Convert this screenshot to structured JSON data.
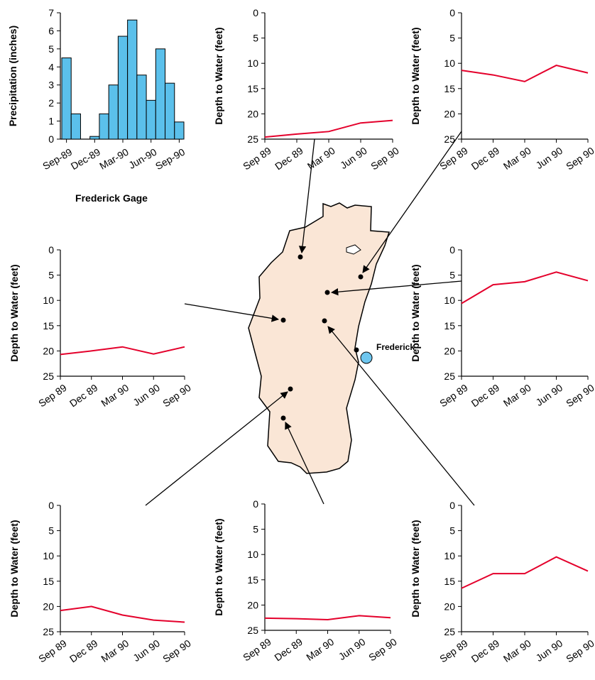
{
  "colors": {
    "precip_bar": "#5bc0eb",
    "well_line": "#e4002b",
    "county_fill": "#fae6d6",
    "city_marker": "#6ec6ef",
    "axis": "#000000"
  },
  "map": {
    "city_label": "Frederick",
    "features": [
      "county-outline",
      "well-points",
      "city-marker",
      "leader-arrows"
    ]
  },
  "chart_data": [
    {
      "id": "precip",
      "type": "bar",
      "title": "",
      "xlabel": "Frederick Gage",
      "ylabel": "Precipitation (inches)",
      "x_tick_labels": [
        "Sep-89",
        "Dec-89",
        "Mar-90",
        "Jun-90",
        "Sep-90"
      ],
      "y_tick_labels": [
        "0",
        "1",
        "2",
        "3",
        "4",
        "5",
        "6",
        "7"
      ],
      "ylim": [
        0,
        7
      ],
      "categories": [
        "Sep-89",
        "Oct-89",
        "Nov-89",
        "Dec-89",
        "Jan-90",
        "Feb-90",
        "Mar-90",
        "Apr-90",
        "May-90",
        "Jun-90",
        "Jul-90",
        "Aug-90",
        "Sep-90"
      ],
      "values": [
        4.5,
        1.4,
        0,
        0.15,
        1.4,
        3.0,
        5.7,
        6.6,
        3.55,
        2.15,
        5.0,
        3.1,
        0.95
      ]
    },
    {
      "id": "well-top-mid",
      "type": "line",
      "ylabel": "Depth to Water (feet)",
      "x_tick_labels": [
        "Sep 89",
        "Dec 89",
        "Mar 90",
        "Jun 90",
        "Sep 90"
      ],
      "y_tick_labels": [
        "0",
        "5",
        "10",
        "15",
        "20",
        "25"
      ],
      "ylim": [
        25,
        0
      ],
      "x": [
        "Sep 89",
        "Dec 89",
        "Mar 90",
        "Jun 90",
        "Sep 90"
      ],
      "values": [
        24.6,
        24.0,
        23.5,
        21.8,
        21.3
      ]
    },
    {
      "id": "well-top-right",
      "type": "line",
      "ylabel": "Depth to Water (feet)",
      "x_tick_labels": [
        "Sep 89",
        "Dec 89",
        "Mar 90",
        "Jun 90",
        "Sep 90"
      ],
      "y_tick_labels": [
        "0",
        "5",
        "10",
        "15",
        "20",
        "25"
      ],
      "ylim": [
        25,
        0
      ],
      "x": [
        "Sep 89",
        "Dec 89",
        "Mar 90",
        "Jun 90",
        "Sep 90"
      ],
      "values": [
        11.4,
        12.3,
        13.6,
        10.4,
        11.9
      ]
    },
    {
      "id": "well-mid-left",
      "type": "line",
      "ylabel": "Depth to Water (feet)",
      "x_tick_labels": [
        "Sep 89",
        "Dec 89",
        "Mar 90",
        "Jun 90",
        "Sep 90"
      ],
      "y_tick_labels": [
        "0",
        "5",
        "10",
        "15",
        "20",
        "25"
      ],
      "ylim": [
        25,
        0
      ],
      "x": [
        "Sep 89",
        "Dec 89",
        "Mar 90",
        "Jun 90",
        "Sep 90"
      ],
      "values": [
        20.7,
        20.0,
        19.2,
        20.6,
        19.2
      ]
    },
    {
      "id": "well-mid-right",
      "type": "line",
      "ylabel": "Depth to Water (feet)",
      "x_tick_labels": [
        "Sep 89",
        "Dec 89",
        "Mar 90",
        "Jun 90",
        "Sep 90"
      ],
      "y_tick_labels": [
        "0",
        "5",
        "10",
        "15",
        "20",
        "25"
      ],
      "ylim": [
        25,
        0
      ],
      "x": [
        "Sep 89",
        "Dec 89",
        "Mar 90",
        "Jun 90",
        "Sep 90"
      ],
      "values": [
        10.6,
        6.9,
        6.3,
        4.4,
        6.1
      ]
    },
    {
      "id": "well-bottom-left",
      "type": "line",
      "ylabel": "Depth to Water (feet)",
      "x_tick_labels": [
        "Sep 89",
        "Dec 89",
        "Mar 90",
        "Jun 90",
        "Sep 90"
      ],
      "y_tick_labels": [
        "0",
        "5",
        "10",
        "15",
        "20",
        "25"
      ],
      "ylim": [
        25,
        0
      ],
      "x": [
        "Sep 89",
        "Dec 89",
        "Mar 90",
        "Jun 90",
        "Sep 90"
      ],
      "values": [
        20.8,
        20.0,
        21.7,
        22.7,
        23.1
      ]
    },
    {
      "id": "well-bottom-mid",
      "type": "line",
      "ylabel": "Depth to Water (feet)",
      "x_tick_labels": [
        "Sep 89",
        "Dec 89",
        "Mar 90",
        "Jun 90",
        "Sep 90"
      ],
      "y_tick_labels": [
        "0",
        "5",
        "10",
        "15",
        "20",
        "25"
      ],
      "ylim": [
        25,
        0
      ],
      "x": [
        "Sep 89",
        "Dec 89",
        "Mar 90",
        "Jun 90",
        "Sep 90"
      ],
      "values": [
        22.6,
        22.7,
        22.9,
        22.1,
        22.5
      ]
    },
    {
      "id": "well-bottom-right",
      "type": "line",
      "ylabel": "Depth to Water (feet)",
      "x_tick_labels": [
        "Sep 89",
        "Dec 89",
        "Mar 90",
        "Jun 90",
        "Sep 90"
      ],
      "y_tick_labels": [
        "0",
        "5",
        "10",
        "15",
        "20",
        "25"
      ],
      "ylim": [
        25,
        0
      ],
      "x": [
        "Sep 89",
        "Dec 89",
        "Mar 90",
        "Jun 90",
        "Sep 90"
      ],
      "values": [
        16.4,
        13.5,
        13.5,
        10.2,
        13.0
      ]
    }
  ]
}
